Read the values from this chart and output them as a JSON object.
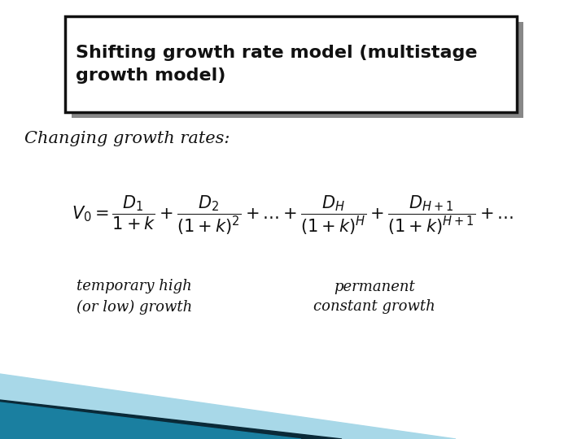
{
  "title_text": "Shifting growth rate model (multistage\ngrowth model)",
  "subtitle_text": "Changing growth rates:",
  "formula": "$V_0 = \\dfrac{D_1}{1+k} + \\dfrac{D_2}{(1+k)^2} + \\ldots + \\dfrac{D_H}{(1+k)^H} + \\dfrac{D_{H+1}}{(1+k)^{H+1}} + \\ldots$",
  "label_left": "temporary high\n(or low) growth",
  "label_right": "permanent\nconstant growth",
  "bg_color": "#ffffff",
  "title_bg": "#ffffff",
  "title_border": "#111111",
  "title_fontsize": 16,
  "subtitle_fontsize": 15,
  "formula_fontsize": 15,
  "label_fontsize": 13,
  "shadow_color": "#888888",
  "teal_color": "#1a7fa0",
  "dark_color": "#0a2a38",
  "light_teal": "#a8d8e8"
}
